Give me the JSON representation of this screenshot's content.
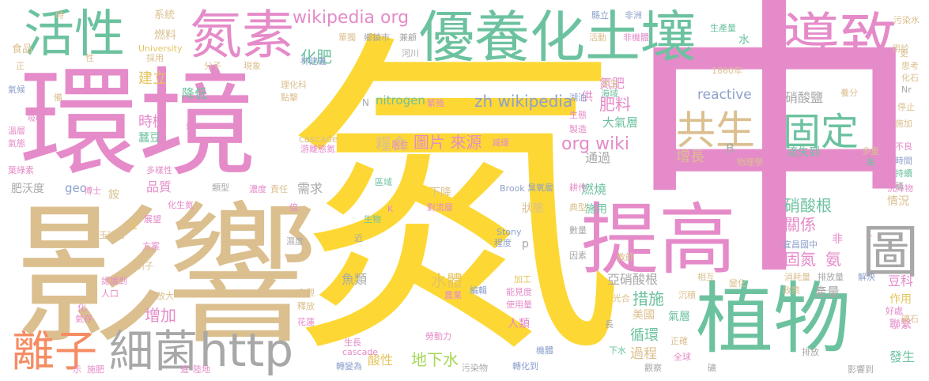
{
  "colors": {
    "yellow": "#fdd835",
    "pink": "#e58bc9",
    "green": "#6cc29f",
    "tan": "#dbbf8f",
    "gray": "#a8a8a8",
    "orange": "#f58c62",
    "blue": "#8da0cb",
    "lime": "#a6d854",
    "gold": "#e5c45e"
  },
  "words": {
    "qi": "氮",
    "zhong": "中",
    "yingxiang": "影響",
    "huanjing": "環境",
    "youyang": "優養化土壤",
    "zhiwu": "植物",
    "tigao": "提高",
    "huoxing": "活性",
    "dansu": "氮素",
    "daozhi": "導致",
    "gongsheng": "共生",
    "guding": "固定",
    "tu": "圖",
    "lizi": "離子",
    "xijun": "細菌",
    "http": "http",
    "wiki_org": "wikipedia org",
    "zh_wiki": "zh wikipedia",
    "org_wiki": "org wiki",
    "nitrogen": "nitrogen",
    "reactive": "reactive",
    "tupian": "圖片 來源",
    "liangshi": "糧食",
    "huafei": "化肥",
    "feiliao": "肥料",
    "dixiashui": "地下水",
    "shuiti": "水體",
    "cuoshi": "措施",
    "xunhuan": "循環",
    "guocheng": "過程",
    "zengjia": "增加",
    "zengzhang": "增長",
    "xiaosuangen": "硝酸根",
    "guanxi": "關係",
    "gudan": "固氮",
    "an": "氨",
    "xiaosuanyan": "硝酸鹽",
    "liushi": "流失到",
    "daqiceng": "大氣層",
    "tongguo": "通過",
    "ranshao": "燃燒",
    "yaxiao": "亞硝酸根",
    "shiji": "時機",
    "jiangdi": "降低",
    "jianli": "建立",
    "danfei": "氮肥",
    "xuqiu": "需求",
    "pinzhi": "品質",
    "yulei": "魚類",
    "suanxing": "酸性",
    "chanliang": "產量",
    "doumiao": "豆科",
    "lianxi": "聯繫",
    "fasheng": "發生",
    "zuoyong": "作用",
    "qingkuang": "情況",
    "meiguo": "美國",
    "shishi": "施用",
    "xiajiang": "下降",
    "zhuangtai": "狀態",
    "renlei": "人類",
    "qiceng": "氣層",
    "geo": "geo",
    "feiwodu": "肥沃度",
    "gong": "供",
    "shui": "水",
    "chuqiceng": "臭氧層",
    "B": "B",
    "N": "N",
    "E": "E",
    "p": "p",
    "K": "K",
    "stony": "Stony",
    "brook": "Brook",
    "cascade": "cascade",
    "university": "University",
    "yr1860": "1860年",
    "ranliao": "燃料",
    "xitong": "系統",
    "shipin": "食品",
    "xingxiang": "現象",
    "fenzi": "分子",
    "caiyong": "採用",
    "linjianyi": "林建義",
    "huodong": "活動",
    "feijiti": "非機體",
    "shengchanliang": "生產量",
    "wuranshui": "污染水",
    "feizhou": "非洲",
    "xianli": "縣立",
    "danduhao": "單獨",
    "xiangzhen": "鄉鎮市",
    "jianqing": "兼顧",
    "heliu": "河川",
    "yangfen": "養分",
    "tingzhi": "停止",
    "shijian": "時間",
    "chixu": "持續",
    "haiyang": "海",
    "duochong": "多重",
    "buliang": "不良",
    "shijia": "施加",
    "yongyu": "用於",
    "sikao": "思考",
    "huashi": "化石",
    "wuzhixue": "物理學",
    "wendu": "溫層",
    "qihou": "氣候",
    "qitai": "氣態",
    "yelvsu": "葉綠素",
    "duoyangxing": "多樣性",
    "leixing": "類型",
    "nongdu": "濃度",
    "zeren": "責任",
    "shidu": "濕度",
    "jin": "近",
    "bei": "倍",
    "shengwu": "生物",
    "quyu": "區域",
    "duiliuceng": "對流層",
    "fangan": "方案",
    "zhanwang": "展望",
    "wangyujun": "王瑜君",
    "lizi2": "例子",
    "renshi": "認識到",
    "renkou": "人口",
    "fangda": "放大",
    "hongguan": "宏觀",
    "shifang": "釋放",
    "huamian": "花蓮",
    "laodongli": "勞動力",
    "shengzhang": "生長",
    "zhuanbian": "轉變為",
    "zhuanhua": "轉化到",
    "jiti": "機體",
    "guancha": "觀察",
    "quanqiu": "全球",
    "paifang": "排放",
    "yingxiangdao": "影響到",
    "jiejue": "解決",
    "paifangliang": "排放量",
    "xiaohaoliang": "消耗量",
    "zhengce": "政策",
    "xianghu": "相互",
    "bianhua": "變化",
    "chenjiang": "沉降物",
    "hualiang": "化量",
    "yishi": "宜昌國中",
    "yinsu": "因素",
    "jiaoshi": "教師",
    "shuliang": "數量",
    "dianxing": "典型",
    "gengzuo": "耕作",
    "dangqian": "當前",
    "jiagong": "加工",
    "nongye": "農業",
    "nengjian": "能見度",
    "shiyongliang": "使用量",
    "bianji": "編輯",
    "chengdu": "程度",
    "wuranwu": "污染物",
    "xiashui": "下水",
    "zhengque": "正確",
    "guangjiao": "光合",
    "chenji": "沉積",
    "zhongyang": "重要",
    "kuangshi": "礦石",
    "haoqi": "好處",
    "lin": "磷",
    "youmo": "游離態氮",
    "jianhuan": "減緩",
    "juzhu": "居住",
    "fanzhi": "繁殖",
    "zhizao": "製造",
    "shengtai": "生態",
    "hupo": "湖泊",
    "shuisheng": "水生",
    "haiyu": "海域",
    "xishou": "吸收",
    "jun": "均",
    "huohua": "火花",
    "dianji": "點擊",
    "lihuake": "理化科",
    "shifei": "施肥",
    "chenchuang": "陳",
    "xue": "雪",
    "bushi": "博士",
    "an2": "銨",
    "jinru": "進",
    "landi": "陸地",
    "qicun": "氣存",
    "boshi": "示",
    "hua": "化",
    "nongchan": "鏈",
    "bei2": "備",
    "zheng": "正",
    "daodou": "蠶豆",
    "huasheng": "化生氮",
    "ye": "葉",
    "dash": "–",
    "fei": "非",
    "geng": "更",
    "shi": "時",
    "jiangxue": "降雪",
    "nr": "Nr",
    "chang": "長",
    "xing": "性",
    "wan": "彎",
    "kuang": "礦"
  }
}
